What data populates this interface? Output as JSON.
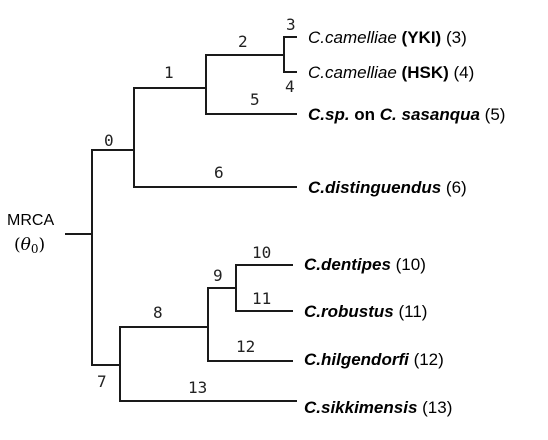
{
  "root": {
    "label": "MRCA",
    "theta_open": "(",
    "theta_symbol": "θ",
    "theta_sub": "0",
    "theta_close": ")"
  },
  "nodes": {
    "n0": "0",
    "n1": "1",
    "n2": "2",
    "n3": "3",
    "n4": "4",
    "n5": "5",
    "n6": "6",
    "n7": "7",
    "n8": "8",
    "n9": "9",
    "n10": "10",
    "n11": "11",
    "n12": "12",
    "n13": "13"
  },
  "leaves": {
    "yki": {
      "genus": "C.",
      "species": "camelliae",
      "strain": "(YKI)",
      "num": "(3)"
    },
    "hsk": {
      "genus": "C.",
      "species": "camelliae",
      "strain": "(HSK)",
      "num": "(4)"
    },
    "sas": {
      "name": "C.sp.",
      "on": " on ",
      "host": "C. sasanqua",
      "num": "(5)"
    },
    "dis": {
      "name": "C.distinguendus",
      "num": "(6)"
    },
    "den": {
      "name": "C.dentipes",
      "num": "(10)"
    },
    "rob": {
      "name": "C.robustus",
      "num": "(11)"
    },
    "hil": {
      "name": "C.hilgendorfi",
      "num": "(12)"
    },
    "sik": {
      "name": "C.sikkimensis",
      "num": "(13)"
    }
  }
}
